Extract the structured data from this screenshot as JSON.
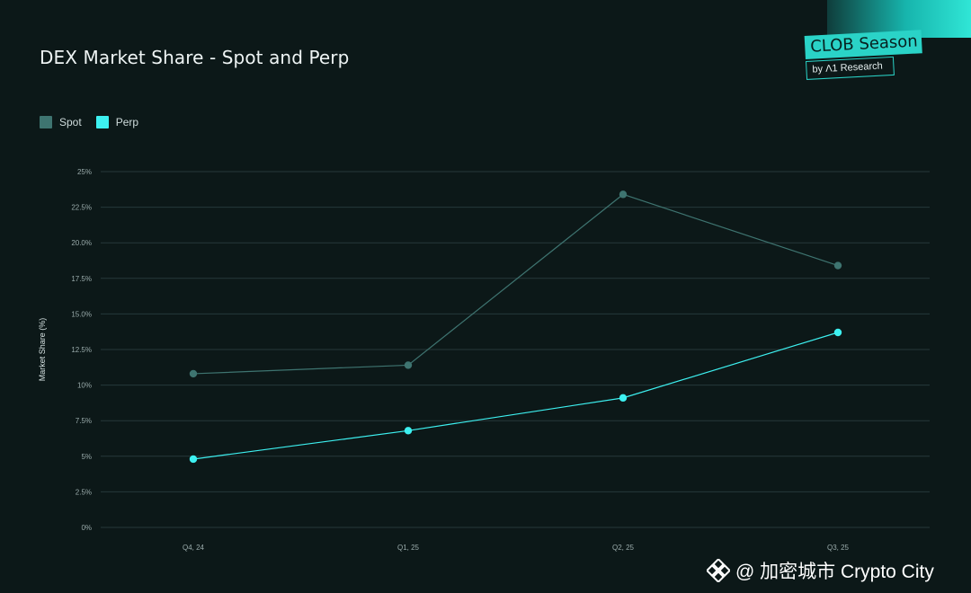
{
  "title": "DEX Market Share - Spot and Perp",
  "brand": {
    "name": "CLOB Season",
    "byline": "by Λ1 Research"
  },
  "watermark": {
    "handle": "@ 加密城市 Crypto City",
    "icon": "binance-diamond-icon"
  },
  "colors": {
    "background": "#0c1818",
    "spot": "#3e7470",
    "perp": "#3df0f0",
    "accent": "#2ad3c7"
  },
  "chart_data": {
    "type": "line",
    "title": "DEX Market Share - Spot and Perp",
    "xlabel": "",
    "ylabel": "Market Share (%)",
    "categories": [
      "Q4, 24",
      "Q1, 25",
      "Q2, 25",
      "Q3, 25"
    ],
    "ylim": [
      0,
      25
    ],
    "yticks": [
      0,
      2.5,
      5,
      7.5,
      10,
      12.5,
      15,
      17.5,
      20,
      22.5,
      25
    ],
    "ytick_labels": [
      "0%",
      "2.5%",
      "5%",
      "7.5%",
      "10%",
      "12.5%",
      "15.0%",
      "17.5%",
      "20.0%",
      "22.5%",
      "25%"
    ],
    "grid": true,
    "legend_position": "top-left",
    "series": [
      {
        "name": "Spot",
        "color": "#3e7470",
        "values": [
          10.8,
          11.4,
          23.4,
          18.4
        ]
      },
      {
        "name": "Perp",
        "color": "#3df0f0",
        "values": [
          4.8,
          6.8,
          9.1,
          13.7
        ]
      }
    ]
  }
}
